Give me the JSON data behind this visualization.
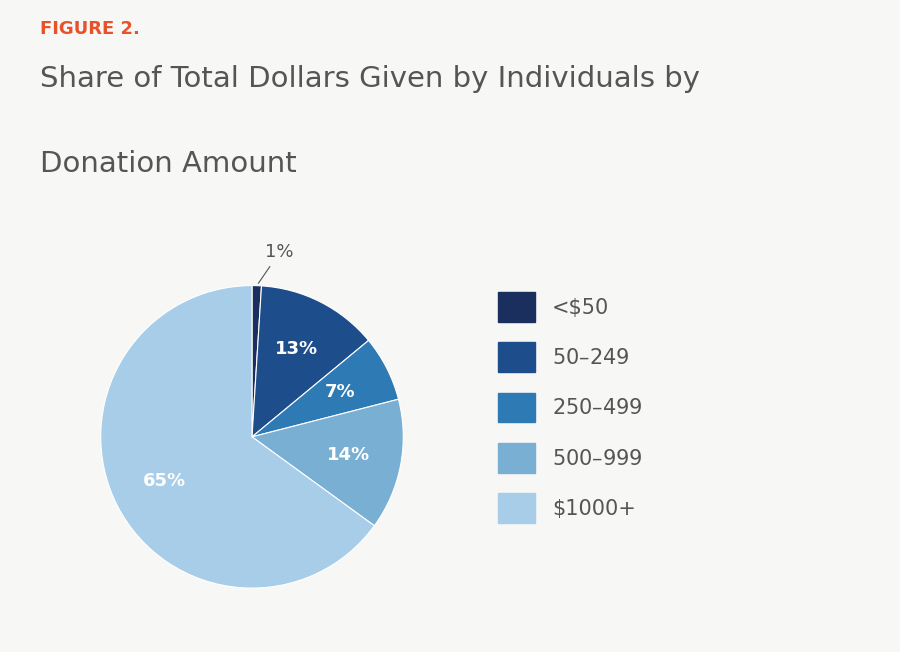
{
  "figure_label": "FIGURE 2.",
  "figure_label_color": "#E8512A",
  "title_line1": "Share of Total Dollars Given by Individuals by",
  "title_line2": "Donation Amount",
  "title_color": "#555555",
  "background_color": "#f7f7f5",
  "slices": [
    1,
    13,
    7,
    14,
    65
  ],
  "labels": [
    "<$50",
    "$50–$249",
    "$250–$499",
    "$500–$999",
    "$1000+"
  ],
  "colors": [
    "#1a2f5e",
    "#1e4d8c",
    "#2e7ab5",
    "#7aafd4",
    "#a8cde8"
  ],
  "pct_labels": [
    "1%",
    "13%",
    "7%",
    "14%",
    "65%"
  ],
  "startangle": 90,
  "legend_fontsize": 15,
  "label_fontsize": 13
}
